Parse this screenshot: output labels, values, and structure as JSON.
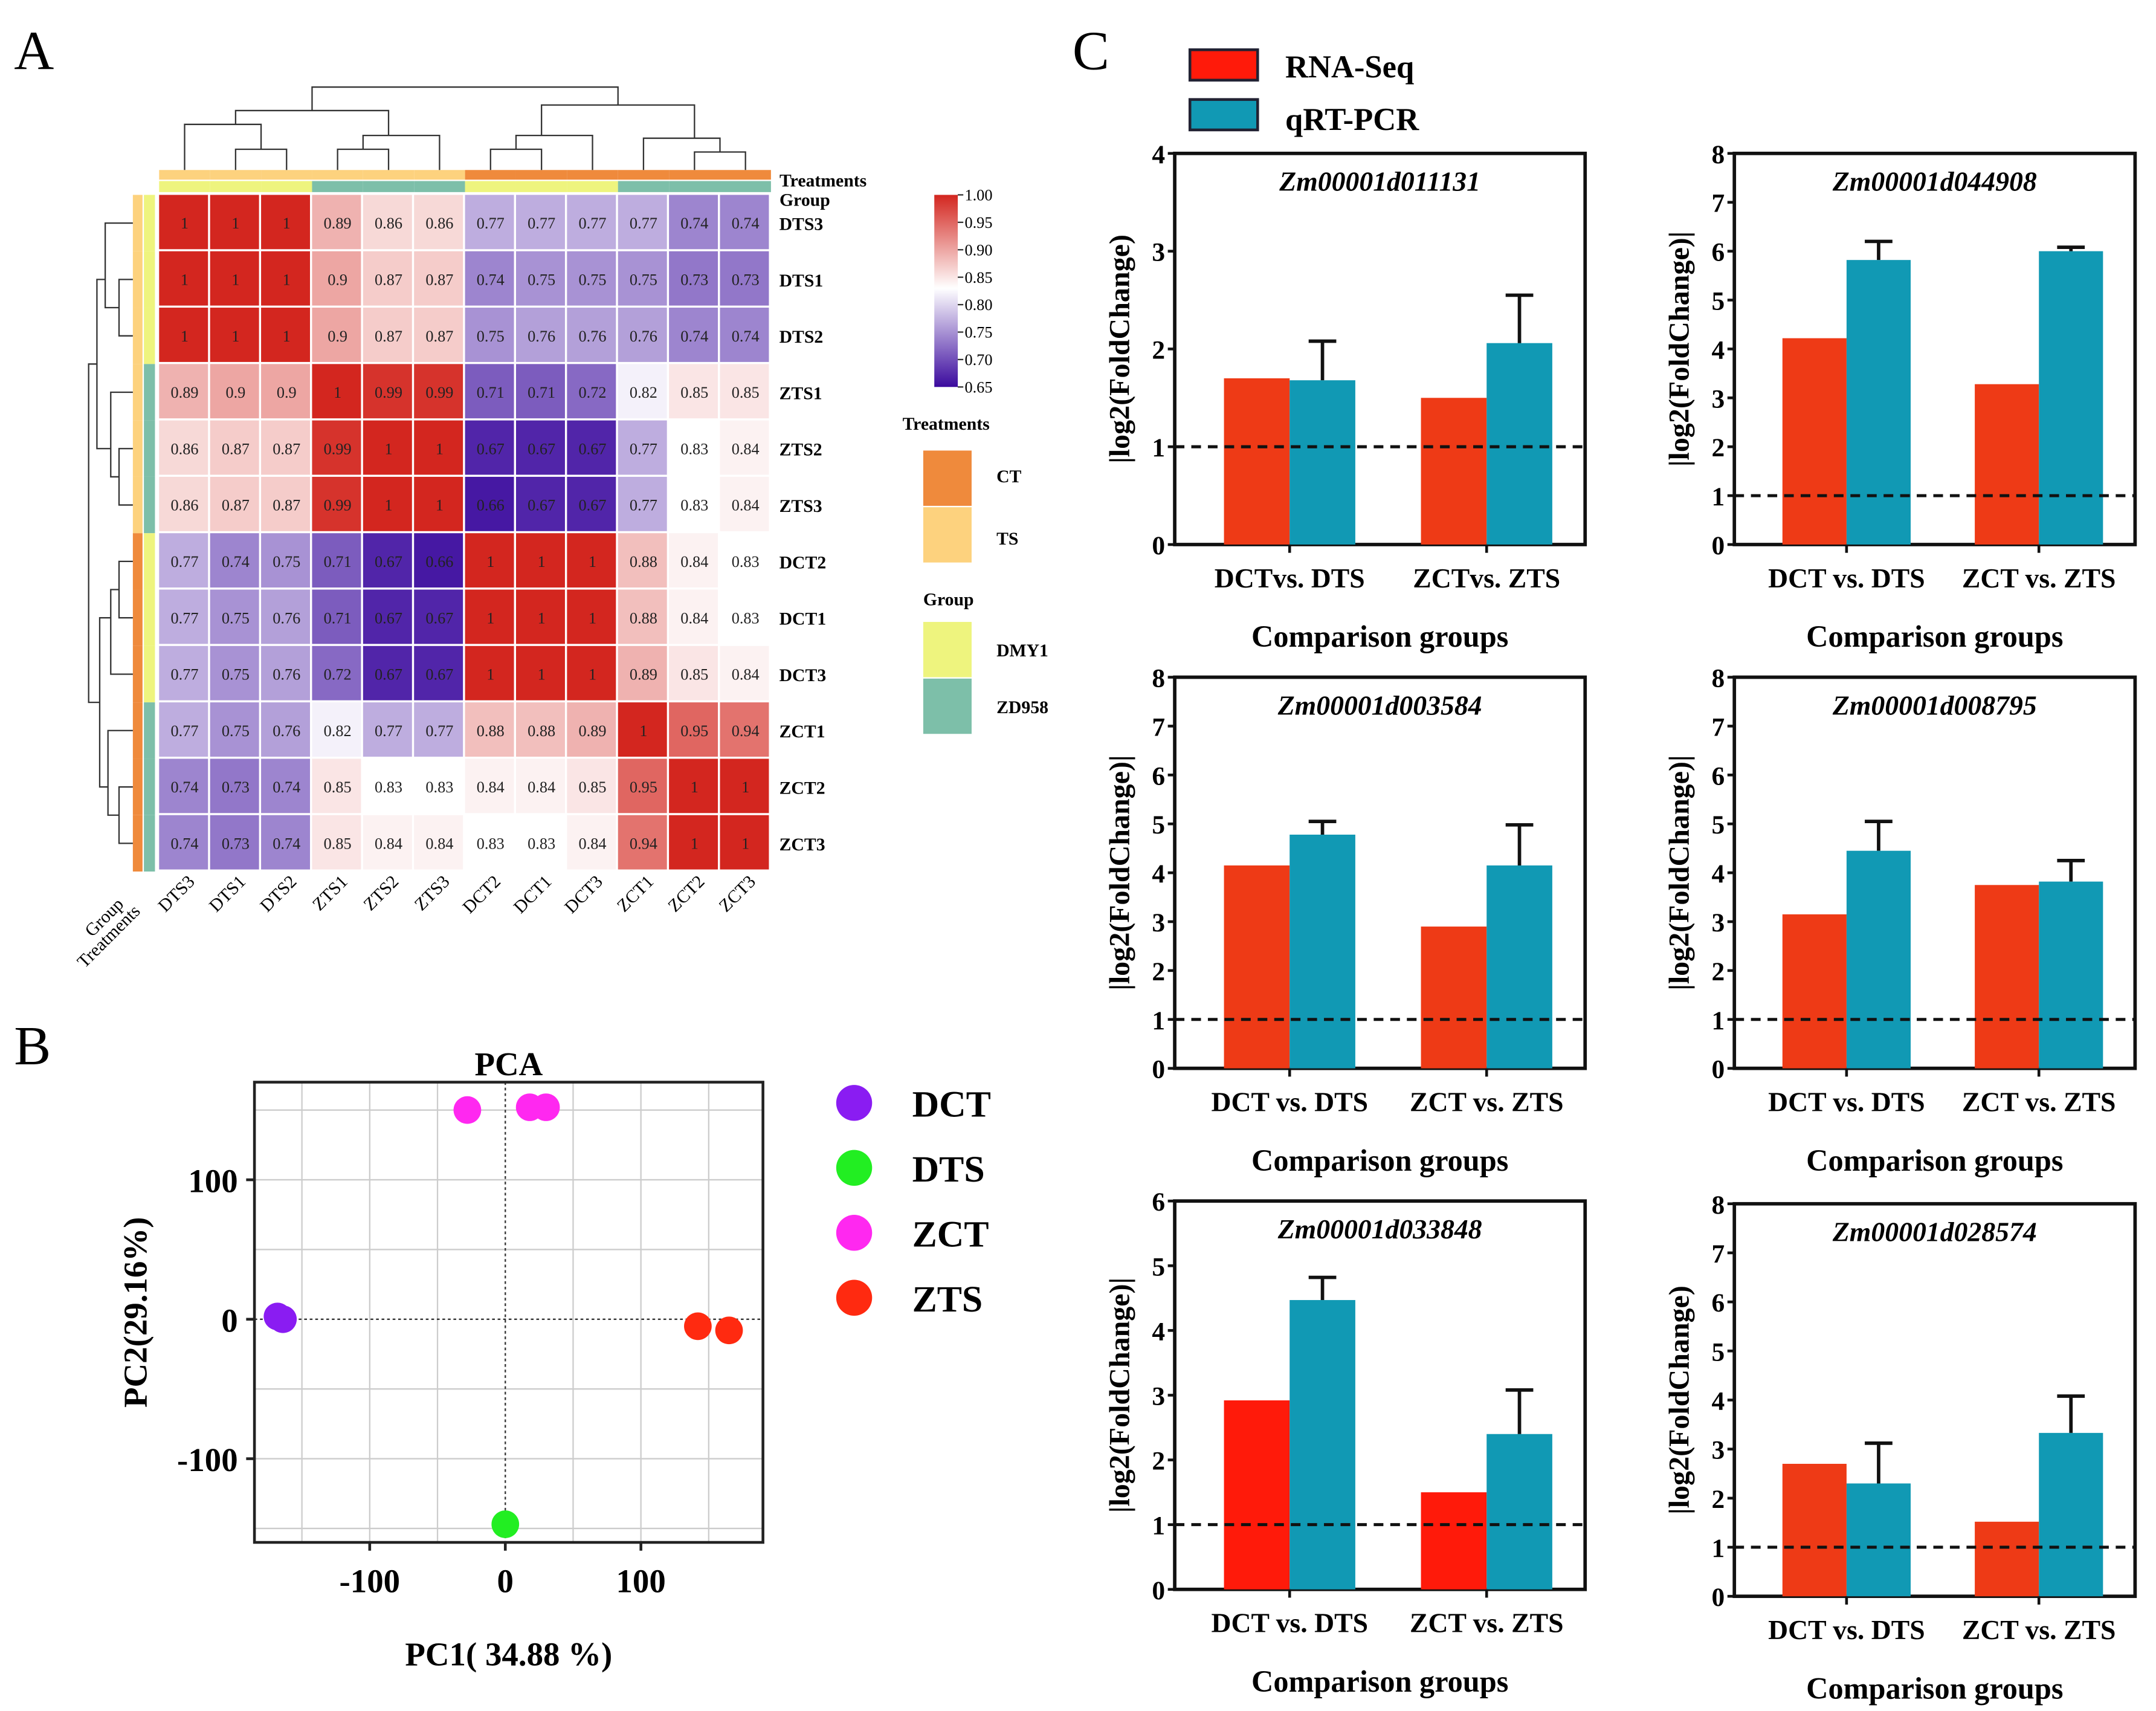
{
  "panel_labels": [
    "A",
    "B",
    "C"
  ],
  "chart_data": [
    {
      "type": "heatmap",
      "panel": "A",
      "samples": [
        "DTS3",
        "DTS1",
        "DTS2",
        "ZTS1",
        "ZTS2",
        "ZTS3",
        "DCT2",
        "DCT1",
        "DCT3",
        "ZCT1",
        "ZCT2",
        "ZCT3"
      ],
      "values": [
        [
          1.0,
          1.0,
          1.0,
          0.89,
          0.86,
          0.86,
          0.77,
          0.77,
          0.77,
          0.77,
          0.74,
          0.74
        ],
        [
          1.0,
          1.0,
          1.0,
          0.9,
          0.87,
          0.87,
          0.74,
          0.75,
          0.75,
          0.75,
          0.73,
          0.73
        ],
        [
          1.0,
          1.0,
          1.0,
          0.9,
          0.87,
          0.87,
          0.75,
          0.76,
          0.76,
          0.76,
          0.74,
          0.74
        ],
        [
          0.89,
          0.9,
          0.9,
          1.0,
          0.99,
          0.99,
          0.71,
          0.71,
          0.72,
          0.82,
          0.85,
          0.85
        ],
        [
          0.86,
          0.87,
          0.87,
          0.99,
          1.0,
          1.0,
          0.67,
          0.67,
          0.67,
          0.77,
          0.83,
          0.84
        ],
        [
          0.86,
          0.87,
          0.87,
          0.99,
          1.0,
          1.0,
          0.66,
          0.67,
          0.67,
          0.77,
          0.83,
          0.84
        ],
        [
          0.77,
          0.74,
          0.75,
          0.71,
          0.67,
          0.66,
          1.0,
          1.0,
          1.0,
          0.88,
          0.84,
          0.83
        ],
        [
          0.77,
          0.75,
          0.76,
          0.71,
          0.67,
          0.67,
          1.0,
          1.0,
          1.0,
          0.88,
          0.84,
          0.83
        ],
        [
          0.77,
          0.75,
          0.76,
          0.72,
          0.67,
          0.67,
          1.0,
          1.0,
          1.0,
          0.89,
          0.85,
          0.84
        ],
        [
          0.77,
          0.75,
          0.76,
          0.82,
          0.77,
          0.77,
          0.88,
          0.88,
          0.89,
          1.0,
          0.95,
          0.94
        ],
        [
          0.74,
          0.73,
          0.74,
          0.85,
          0.83,
          0.83,
          0.84,
          0.84,
          0.85,
          0.95,
          1.0,
          1.0
        ],
        [
          0.74,
          0.73,
          0.74,
          0.85,
          0.84,
          0.84,
          0.83,
          0.83,
          0.84,
          0.94,
          1.0,
          1.0
        ]
      ],
      "sample_treatments": [
        "TS",
        "TS",
        "TS",
        "TS",
        "TS",
        "TS",
        "CT",
        "CT",
        "CT",
        "CT",
        "CT",
        "CT"
      ],
      "sample_groups": [
        "DMY1",
        "DMY1",
        "DMY1",
        "ZD958",
        "ZD958",
        "ZD958",
        "DMY1",
        "DMY1",
        "DMY1",
        "ZD958",
        "ZD958",
        "ZD958"
      ],
      "annotation_row_labels": [
        "Treatments",
        "Group"
      ],
      "colorbar": {
        "ticks": [
          "1.00",
          "0.95",
          "0.90",
          "0.85",
          "0.80",
          "0.75",
          "0.70",
          "0.65"
        ],
        "range": [
          0.65,
          1.0
        ],
        "colors": {
          "low": "#3b0a9e",
          "mid": "#ffffff",
          "high": "#d3261f"
        }
      },
      "legend": {
        "treatments_title": "Treatments",
        "treatments": [
          {
            "label": "CT",
            "color": "#ef8a3c"
          },
          {
            "label": "TS",
            "color": "#fdd27e"
          }
        ],
        "group_title": "Group",
        "groups": [
          {
            "label": "DMY1",
            "color": "#eef47e"
          },
          {
            "label": "ZD958",
            "color": "#7dbfa9"
          }
        ]
      }
    },
    {
      "type": "scatter",
      "panel": "B",
      "title": "PCA",
      "xlabel": "PC1( 34.88 %)",
      "ylabel": "PC2(29.16%)",
      "xlim": [
        -185,
        190
      ],
      "ylim": [
        -160,
        170
      ],
      "xticks": [
        "-100",
        "0",
        "100"
      ],
      "yticks": [
        "100",
        "0",
        "-100"
      ],
      "grid": true,
      "legend_position": "right",
      "series": [
        {
          "name": "DCT",
          "color": "#8a1cf2",
          "points": [
            [
              -168,
              2
            ],
            [
              -164,
              0
            ]
          ]
        },
        {
          "name": "DTS",
          "color": "#22ee22",
          "points": [
            [
              0,
              -147
            ]
          ]
        },
        {
          "name": "ZCT",
          "color": "#ff28f0",
          "points": [
            [
              -28,
              150
            ],
            [
              18,
              152
            ],
            [
              30,
              152
            ]
          ]
        },
        {
          "name": "ZTS",
          "color": "#ff2a10",
          "points": [
            [
              142,
              -5
            ],
            [
              165,
              -8
            ]
          ]
        }
      ]
    },
    {
      "type": "bar",
      "panel": "C",
      "legend": [
        {
          "name": "RNA-Seq",
          "color": "#ff1a0a"
        },
        {
          "name": "qRT-PCR",
          "color": "#1199b4"
        }
      ],
      "legend_position": "top",
      "charts": [
        {
          "title": "Zm00001d011131",
          "ylabel": "|log2(FoldChange)",
          "xlabel": "Comparison groups",
          "ylim": [
            0,
            4
          ],
          "yticks": [
            "0",
            "1",
            "2",
            "3",
            "4"
          ],
          "categories": [
            "DCTvs. DTS",
            "ZCTvs. ZTS"
          ],
          "threshold": 1,
          "series": [
            {
              "name": "RNA-Seq",
              "values": [
                1.7,
                1.5
              ]
            },
            {
              "name": "qRT-PCR",
              "values": [
                1.68,
                2.06
              ],
              "error": [
                0.4,
                0.49
              ]
            }
          ],
          "rna_color": "#ee3a16"
        },
        {
          "title": "Zm00001d044908",
          "ylabel": "|log2(FoldChange)|",
          "xlabel": "Comparison groups",
          "ylim": [
            0,
            8
          ],
          "yticks": [
            "0",
            "1",
            "2",
            "3",
            "4",
            "5",
            "6",
            "7",
            "8"
          ],
          "categories": [
            "DCT vs. DTS",
            "ZCT vs. ZTS"
          ],
          "threshold": 1,
          "series": [
            {
              "name": "RNA-Seq",
              "values": [
                4.22,
                3.28
              ]
            },
            {
              "name": "qRT-PCR",
              "values": [
                5.82,
                6.0
              ],
              "error": [
                0.38,
                0.08
              ]
            }
          ],
          "rna_color": "#ee3a16"
        },
        {
          "title": "Zm00001d003584",
          "ylabel": "|log2(FoldChange)|",
          "xlabel": "Comparison groups",
          "ylim": [
            0,
            8
          ],
          "yticks": [
            "0",
            "1",
            "2",
            "3",
            "4",
            "5",
            "6",
            "7",
            "8"
          ],
          "categories": [
            "DCT vs. DTS",
            "ZCT vs. ZTS"
          ],
          "threshold": 1,
          "series": [
            {
              "name": "RNA-Seq",
              "values": [
                4.15,
                2.9
              ]
            },
            {
              "name": "qRT-PCR",
              "values": [
                4.78,
                4.15
              ],
              "error": [
                0.27,
                0.83
              ]
            }
          ],
          "rna_color": "#ee3a16"
        },
        {
          "title": "Zm00001d008795",
          "ylabel": "|log2(FoldChange)|",
          "xlabel": "Comparison groups",
          "ylim": [
            0,
            8
          ],
          "yticks": [
            "0",
            "1",
            "2",
            "3",
            "4",
            "5",
            "6",
            "7",
            "8"
          ],
          "categories": [
            "DCT vs. DTS",
            "ZCT vs. ZTS"
          ],
          "threshold": 1,
          "series": [
            {
              "name": "RNA-Seq",
              "values": [
                3.15,
                3.75
              ]
            },
            {
              "name": "qRT-PCR",
              "values": [
                4.45,
                3.82
              ],
              "error": [
                0.6,
                0.43
              ]
            }
          ],
          "rna_color": "#ee3a16"
        },
        {
          "title": "Zm00001d033848",
          "ylabel": "|log2(FoldChange)|",
          "xlabel": "Comparison groups",
          "ylim": [
            0,
            6
          ],
          "yticks": [
            "0",
            "1",
            "2",
            "3",
            "4",
            "5",
            "6"
          ],
          "categories": [
            "DCT vs. DTS",
            "ZCT vs. ZTS"
          ],
          "threshold": 1,
          "series": [
            {
              "name": "RNA-Seq",
              "values": [
                2.92,
                1.5
              ]
            },
            {
              "name": "qRT-PCR",
              "values": [
                4.47,
                2.4
              ],
              "error": [
                0.35,
                0.68
              ]
            }
          ],
          "rna_color": "#ff1a0a"
        },
        {
          "title": "Zm00001d028574",
          "ylabel": "|log2(FoldChange)",
          "xlabel": "Comparison groups",
          "ylim": [
            0,
            8
          ],
          "yticks": [
            "0",
            "1",
            "2",
            "3",
            "4",
            "5",
            "6",
            "7",
            "8"
          ],
          "categories": [
            "DCT vs. DTS",
            "ZCT vs. ZTS"
          ],
          "threshold": 1,
          "series": [
            {
              "name": "RNA-Seq",
              "values": [
                2.7,
                1.52
              ]
            },
            {
              "name": "qRT-PCR",
              "values": [
                2.3,
                3.33
              ],
              "error": [
                0.82,
                0.75
              ]
            }
          ],
          "rna_color": "#ee3a16"
        }
      ]
    }
  ]
}
